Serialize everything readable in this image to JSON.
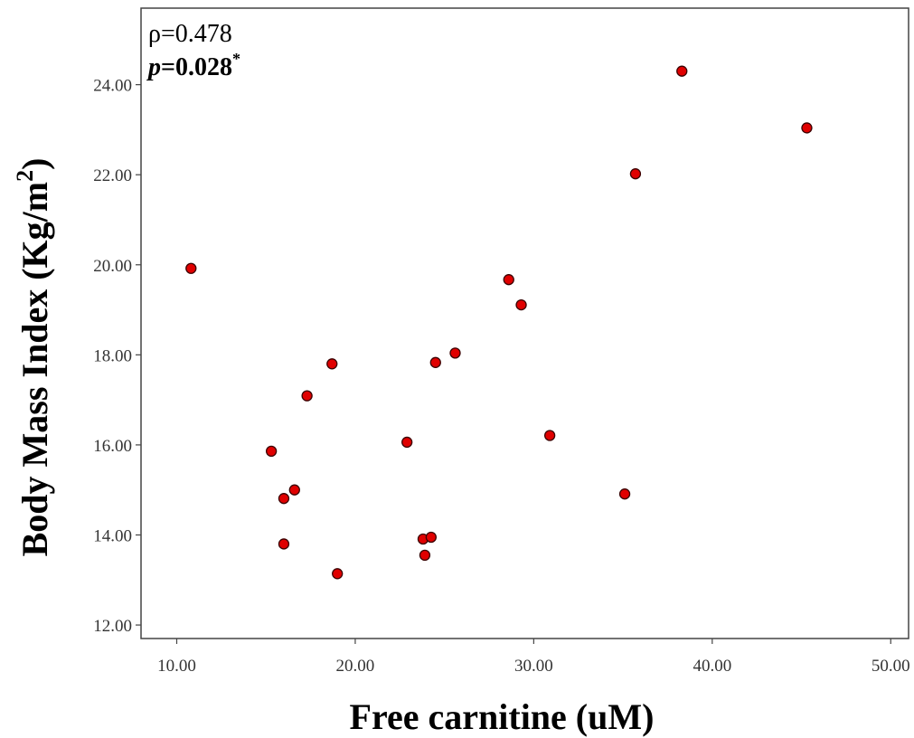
{
  "chart_data": {
    "type": "scatter",
    "xlabel": "Free carnitine (uM)",
    "ylabel": "Body Mass Index (Kg/m",
    "ylabel_superscript": "2",
    "ylabel_suffix": ")",
    "xlim": [
      8.0,
      51.0
    ],
    "ylim": [
      11.7,
      25.7
    ],
    "x_ticks": [
      10,
      20,
      30,
      40,
      50
    ],
    "y_ticks": [
      12,
      14,
      16,
      18,
      20,
      22,
      24
    ],
    "x_tick_labels": [
      "10.00",
      "20.00",
      "30.00",
      "40.00",
      "50.00"
    ],
    "y_tick_labels": [
      "12.00",
      "14.00",
      "16.00",
      "18.00",
      "20.00",
      "22.00",
      "24.00"
    ],
    "grid": false,
    "marker_color": "#e00000",
    "marker_edge_color": "#3a0000",
    "annotation": {
      "rho_label": "ρ=0.478",
      "p_italic": "p",
      "p_value": "=0.028",
      "p_superscript": "*"
    },
    "points": [
      {
        "x": 10.8,
        "y": 19.92
      },
      {
        "x": 15.3,
        "y": 15.86
      },
      {
        "x": 16.0,
        "y": 14.81
      },
      {
        "x": 16.6,
        "y": 15.0
      },
      {
        "x": 16.0,
        "y": 13.8
      },
      {
        "x": 17.3,
        "y": 17.09
      },
      {
        "x": 18.7,
        "y": 17.8
      },
      {
        "x": 19.0,
        "y": 13.14
      },
      {
        "x": 22.9,
        "y": 16.06
      },
      {
        "x": 23.8,
        "y": 13.91
      },
      {
        "x": 24.25,
        "y": 13.95
      },
      {
        "x": 23.9,
        "y": 13.55
      },
      {
        "x": 24.5,
        "y": 17.83
      },
      {
        "x": 25.6,
        "y": 18.04
      },
      {
        "x": 28.6,
        "y": 19.67
      },
      {
        "x": 29.3,
        "y": 19.11
      },
      {
        "x": 30.9,
        "y": 16.21
      },
      {
        "x": 35.1,
        "y": 14.91
      },
      {
        "x": 35.7,
        "y": 22.02
      },
      {
        "x": 38.3,
        "y": 24.3
      },
      {
        "x": 45.3,
        "y": 23.04
      }
    ]
  }
}
